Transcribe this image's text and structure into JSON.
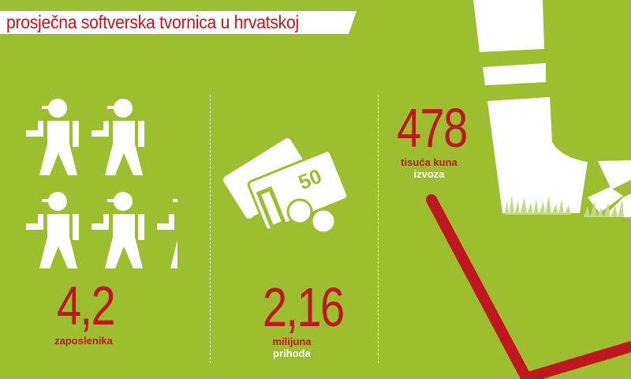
{
  "title": "prosječna softverska tvornica u hrvatskoj",
  "colors": {
    "background": "#9dbe2f",
    "accent": "#c0161f",
    "foreground": "#ffffff"
  },
  "stats": [
    {
      "value": "4,2",
      "label": "zaposlenika",
      "icon": "worker-icon"
    },
    {
      "value": "2,16",
      "label": "milijuna",
      "sublabel": "prihoda",
      "icon": "money-icon"
    },
    {
      "value": "478",
      "label": "tisuća kuna",
      "sublabel": "izvoza",
      "icon": "shovel-boot-illustration"
    }
  ],
  "money_icon_denomination": "50"
}
